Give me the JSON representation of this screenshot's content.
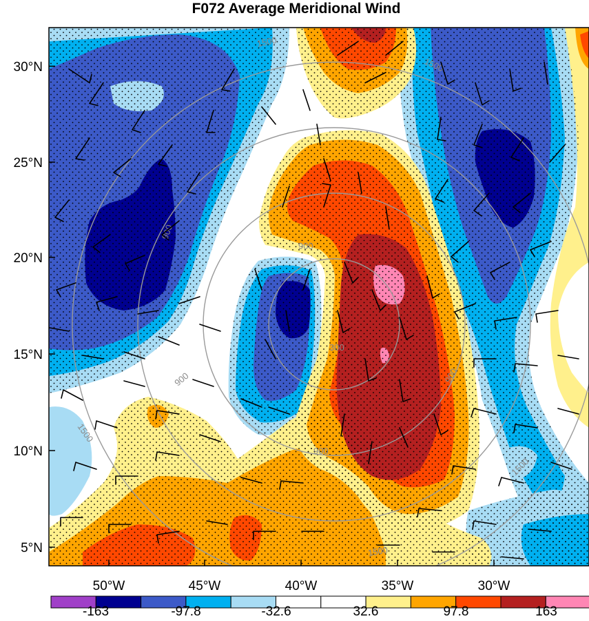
{
  "title": "F072 Average Meridional Wind",
  "lat_ticks": [
    "30°N",
    "25°N",
    "20°N",
    "15°N",
    "10°N",
    "5°N"
  ],
  "lon_ticks": [
    "50°W",
    "45°W",
    "40°W",
    "35°W",
    "30°W"
  ],
  "colorbar": {
    "colors": [
      "#a040c8",
      "#000090",
      "#3c5ac8",
      "#00b0f0",
      "#a8dcf4",
      "#ffffff",
      "#ffffff",
      "#fff08c",
      "#ffa500",
      "#ff4800",
      "#b42020",
      "#ff86b4"
    ],
    "labels": [
      "-163",
      "-97.8",
      "-32.6",
      "32.6",
      "97.8",
      "163"
    ]
  },
  "ring_labels": [
    "300",
    "900",
    "900",
    "900",
    "900",
    "900",
    "1500",
    "1500",
    "1500",
    "1500",
    "1500"
  ]
}
